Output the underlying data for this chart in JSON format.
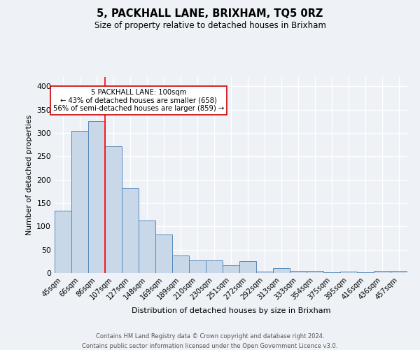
{
  "title": "5, PACKHALL LANE, BRIXHAM, TQ5 0RZ",
  "subtitle": "Size of property relative to detached houses in Brixham",
  "xlabel": "Distribution of detached houses by size in Brixham",
  "ylabel": "Number of detached properties",
  "categories": [
    "45sqm",
    "66sqm",
    "86sqm",
    "107sqm",
    "127sqm",
    "148sqm",
    "169sqm",
    "189sqm",
    "210sqm",
    "230sqm",
    "251sqm",
    "272sqm",
    "292sqm",
    "313sqm",
    "333sqm",
    "354sqm",
    "375sqm",
    "395sqm",
    "416sqm",
    "436sqm",
    "457sqm"
  ],
  "values": [
    134,
    305,
    325,
    272,
    182,
    112,
    83,
    38,
    27,
    27,
    17,
    25,
    3,
    11,
    5,
    5,
    1,
    3,
    1,
    5,
    5
  ],
  "bar_color": "#c8d8e8",
  "bar_edge_color": "#5588bb",
  "red_line_x": 2.5,
  "annotation_text": "5 PACKHALL LANE: 100sqm\n← 43% of detached houses are smaller (658)\n56% of semi-detached houses are larger (859) →",
  "annotation_box_color": "#ffffff",
  "annotation_box_edge": "#cc0000",
  "footer_line1": "Contains HM Land Registry data © Crown copyright and database right 2024.",
  "footer_line2": "Contains public sector information licensed under the Open Government Licence v3.0.",
  "bg_color": "#eef2f7",
  "grid_color": "#ffffff",
  "ylim": [
    0,
    420
  ],
  "yticks": [
    0,
    50,
    100,
    150,
    200,
    250,
    300,
    350,
    400
  ],
  "title_fontsize": 10.5,
  "subtitle_fontsize": 8.5
}
